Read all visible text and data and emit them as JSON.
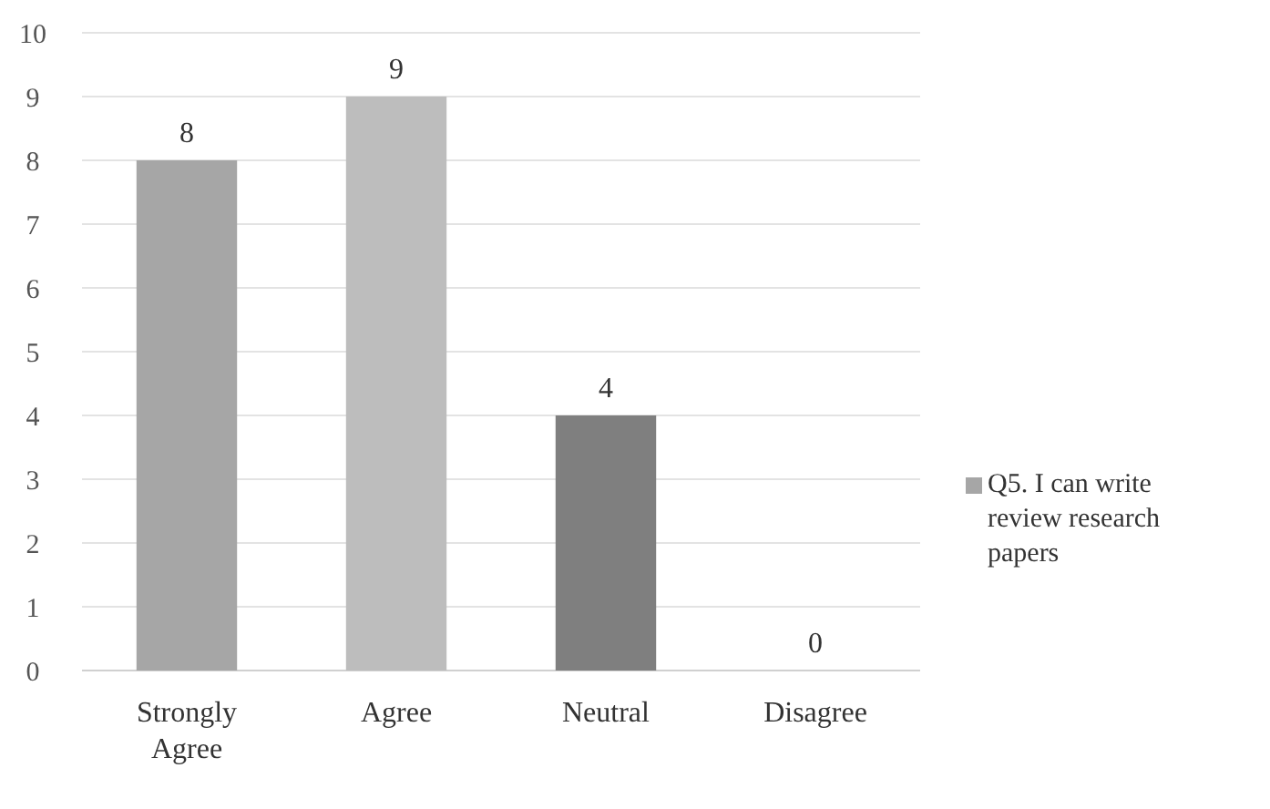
{
  "chart_data": {
    "type": "bar",
    "categories": [
      "Strongly Agree",
      "Agree",
      "Neutral",
      "Disagree"
    ],
    "series": [
      {
        "name": "Q5. I can write review research papers",
        "color": "#a6a6a6",
        "colors": [
          "#a6a6a6",
          "#bdbdbd",
          "#7f7f7f",
          "#a6a6a6"
        ],
        "values": [
          8,
          9,
          4,
          0
        ]
      }
    ],
    "ylim": [
      0,
      10
    ],
    "yticks": [
      0,
      1,
      2,
      3,
      4,
      5,
      6,
      7,
      8,
      9,
      10
    ],
    "grid": "y",
    "legend": "right",
    "data_labels": true
  }
}
